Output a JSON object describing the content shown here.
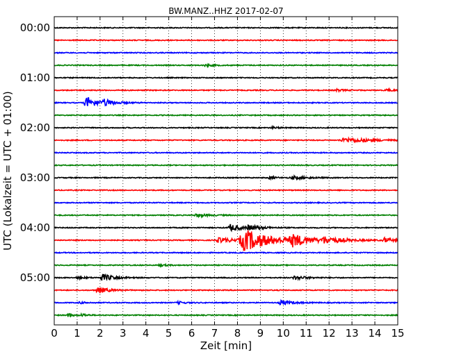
{
  "chart_data": {
    "type": "line",
    "title": "BW.MANZ..HHZ 2017-02-07",
    "xlabel": "Zeit  [min]",
    "ylabel": "UTC (Lokalzeit = UTC + 01:00)",
    "xlim": [
      0,
      15
    ],
    "xticks": [
      "0",
      "1",
      "2",
      "3",
      "4",
      "5",
      "6",
      "7",
      "8",
      "9",
      "10",
      "11",
      "12",
      "13",
      "14",
      "15"
    ],
    "ylim_hours": [
      "00:00",
      "06:00"
    ],
    "yticks": [
      "00:00",
      "01:00",
      "02:00",
      "03:00",
      "04:00",
      "05:00"
    ],
    "trace_interval_min": 15,
    "grid": "vertical dotted at each minute",
    "colors_cycle": [
      "#000000",
      "#ff0000",
      "#0000ff",
      "#008000"
    ],
    "traces": [
      {
        "start": "00:00",
        "events": []
      },
      {
        "start": "00:15",
        "events": []
      },
      {
        "start": "00:30",
        "events": []
      },
      {
        "start": "00:45",
        "events": [
          {
            "t": 6.6,
            "amp": 0.15,
            "dur": 0.3
          }
        ]
      },
      {
        "start": "01:00",
        "events": []
      },
      {
        "start": "01:15",
        "events": [
          {
            "t": 12.3,
            "amp": 0.15,
            "dur": 0.3
          },
          {
            "t": 14.5,
            "amp": 0.15,
            "dur": 0.3
          }
        ]
      },
      {
        "start": "01:30",
        "events": [
          {
            "t": 1.4,
            "amp": 0.75,
            "dur": 0.5
          },
          {
            "t": 2.2,
            "amp": 0.35,
            "dur": 0.4
          }
        ]
      },
      {
        "start": "01:45",
        "events": []
      },
      {
        "start": "02:00",
        "events": [
          {
            "t": 9.5,
            "amp": 0.12,
            "dur": 0.3
          }
        ]
      },
      {
        "start": "02:15",
        "events": [
          {
            "t": 12.7,
            "amp": 0.3,
            "dur": 1.2
          }
        ]
      },
      {
        "start": "02:30",
        "events": []
      },
      {
        "start": "02:45",
        "events": []
      },
      {
        "start": "03:00",
        "events": [
          {
            "t": 9.4,
            "amp": 0.15,
            "dur": 0.3
          },
          {
            "t": 10.4,
            "amp": 0.2,
            "dur": 0.6
          }
        ]
      },
      {
        "start": "03:15",
        "events": []
      },
      {
        "start": "03:30",
        "events": []
      },
      {
        "start": "03:45",
        "events": [
          {
            "t": 6.2,
            "amp": 0.2,
            "dur": 0.5
          }
        ]
      },
      {
        "start": "04:00",
        "events": [
          {
            "t": 7.7,
            "amp": 0.45,
            "dur": 0.5
          },
          {
            "t": 8.5,
            "amp": 0.3,
            "dur": 0.5
          }
        ]
      },
      {
        "start": "04:15",
        "events": [
          {
            "t": 7.2,
            "amp": 0.3,
            "dur": 0.8
          },
          {
            "t": 8.3,
            "amp": 1.4,
            "dur": 1.1
          },
          {
            "t": 10.4,
            "amp": 0.7,
            "dur": 0.7
          },
          {
            "t": 11.8,
            "amp": 0.35,
            "dur": 0.8
          },
          {
            "t": 14.4,
            "amp": 0.35,
            "dur": 0.3
          }
        ]
      },
      {
        "start": "04:30",
        "events": []
      },
      {
        "start": "04:45",
        "events": [
          {
            "t": 4.6,
            "amp": 0.12,
            "dur": 0.3
          }
        ]
      },
      {
        "start": "05:00",
        "events": [
          {
            "t": 1.0,
            "amp": 0.18,
            "dur": 0.3
          },
          {
            "t": 2.1,
            "amp": 0.45,
            "dur": 0.5
          },
          {
            "t": 10.5,
            "amp": 0.25,
            "dur": 0.5
          }
        ]
      },
      {
        "start": "05:15",
        "events": [
          {
            "t": 1.9,
            "amp": 0.45,
            "dur": 0.4
          }
        ]
      },
      {
        "start": "05:30",
        "events": [
          {
            "t": 1.1,
            "amp": 0.12,
            "dur": 0.3
          },
          {
            "t": 5.4,
            "amp": 0.15,
            "dur": 0.3
          },
          {
            "t": 9.9,
            "amp": 0.3,
            "dur": 0.5
          }
        ]
      },
      {
        "start": "05:45",
        "events": [
          {
            "t": 0.6,
            "amp": 0.25,
            "dur": 0.2
          },
          {
            "t": 1.2,
            "amp": 0.2,
            "dur": 0.2
          }
        ]
      }
    ]
  }
}
